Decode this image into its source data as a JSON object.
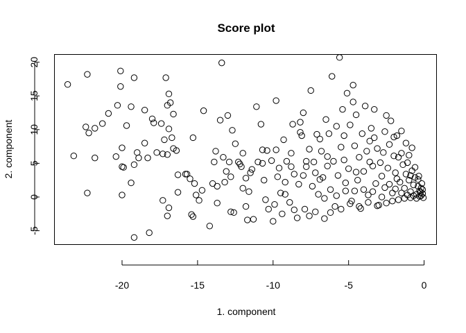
{
  "chart_data": {
    "type": "scatter",
    "title": "Score plot",
    "xlabel": "1. component",
    "ylabel": "2. component",
    "xlim": [
      -24.5,
      0.8
    ],
    "ylim": [
      -7.0,
      21.2
    ],
    "xticks": [
      -20,
      -15,
      -10,
      -5,
      0
    ],
    "yticks": [
      -5,
      0,
      5,
      10,
      15,
      20
    ],
    "grid": false,
    "legend": "none",
    "marker": "open-circle",
    "points": [
      [
        -23.6,
        16.7
      ],
      [
        -23.2,
        6.1
      ],
      [
        -22.4,
        10.4
      ],
      [
        -22.3,
        18.2
      ],
      [
        -22.2,
        9.5
      ],
      [
        -22.3,
        0.6
      ],
      [
        -21.8,
        10.2
      ],
      [
        -21.8,
        5.8
      ],
      [
        -21.3,
        10.9
      ],
      [
        -20.9,
        12.4
      ],
      [
        -20.4,
        6.0
      ],
      [
        -20.3,
        13.6
      ],
      [
        -20.1,
        18.7
      ],
      [
        -20.1,
        16.4
      ],
      [
        -20.0,
        7.3
      ],
      [
        -20.0,
        4.5
      ],
      [
        -19.9,
        4.4
      ],
      [
        -20.0,
        0.3
      ],
      [
        -19.7,
        10.6
      ],
      [
        -19.4,
        2.1
      ],
      [
        -19.4,
        13.4
      ],
      [
        -19.2,
        17.7
      ],
      [
        -19.2,
        4.8
      ],
      [
        -19.2,
        -6.0
      ],
      [
        -19.0,
        6.6
      ],
      [
        -18.9,
        5.8
      ],
      [
        -18.5,
        8.0
      ],
      [
        -18.5,
        12.9
      ],
      [
        -18.3,
        5.8
      ],
      [
        -18.2,
        -5.3
      ],
      [
        -18.0,
        11.6
      ],
      [
        -17.9,
        11.0
      ],
      [
        -17.7,
        6.6
      ],
      [
        -17.3,
        6.4
      ],
      [
        -17.4,
        10.9
      ],
      [
        -17.2,
        8.5
      ],
      [
        -17.1,
        17.7
      ],
      [
        -17.0,
        6.3
      ],
      [
        -17.0,
        13.6
      ],
      [
        -16.9,
        15.3
      ],
      [
        -16.9,
        10.1
      ],
      [
        -16.8,
        14.0
      ],
      [
        -16.7,
        8.8
      ],
      [
        -16.6,
        7.2
      ],
      [
        -16.6,
        12.3
      ],
      [
        -16.4,
        6.9
      ],
      [
        -16.3,
        3.3
      ],
      [
        -17.3,
        -0.5
      ],
      [
        -16.9,
        -1.6
      ],
      [
        -17.0,
        -2.8
      ],
      [
        -16.3,
        0.7
      ],
      [
        -15.8,
        3.4
      ],
      [
        -15.7,
        3.4
      ],
      [
        -15.5,
        2.7
      ],
      [
        -15.3,
        8.8
      ],
      [
        -15.2,
        2.0
      ],
      [
        -15.4,
        -2.6
      ],
      [
        -15.3,
        -2.9
      ],
      [
        -15.1,
        0.3
      ],
      [
        -14.9,
        -0.5
      ],
      [
        -14.7,
        1.0
      ],
      [
        -14.6,
        12.8
      ],
      [
        -14.2,
        -4.3
      ],
      [
        -14.0,
        2.0
      ],
      [
        -13.9,
        5.2
      ],
      [
        -13.8,
        6.8
      ],
      [
        -13.7,
        1.6
      ],
      [
        -13.7,
        -0.9
      ],
      [
        -13.5,
        11.4
      ],
      [
        -13.4,
        19.9
      ],
      [
        -13.3,
        5.9
      ],
      [
        -13.2,
        2.2
      ],
      [
        -13.1,
        3.8
      ],
      [
        -13.0,
        12.1
      ],
      [
        -12.9,
        5.2
      ],
      [
        -12.8,
        3.0
      ],
      [
        -12.7,
        9.9
      ],
      [
        -12.6,
        -2.3
      ],
      [
        -12.5,
        7.9
      ],
      [
        -12.3,
        5.2
      ],
      [
        -12.2,
        4.9
      ],
      [
        -12.1,
        4.5
      ],
      [
        -12.0,
        1.3
      ],
      [
        -11.8,
        -1.4
      ],
      [
        -11.7,
        -3.4
      ],
      [
        -11.6,
        0.8
      ],
      [
        -11.5,
        3.6
      ],
      [
        -11.3,
        -3.3
      ],
      [
        -11.1,
        13.4
      ],
      [
        -11.0,
        5.2
      ],
      [
        -10.8,
        10.8
      ],
      [
        -10.7,
        7.0
      ],
      [
        -10.6,
        2.5
      ],
      [
        -10.5,
        -0.4
      ],
      [
        -10.4,
        6.9
      ],
      [
        -10.3,
        -1.8
      ],
      [
        -10.1,
        5.4
      ],
      [
        -10.0,
        -3.6
      ],
      [
        -9.8,
        14.3
      ],
      [
        -9.8,
        7.0
      ],
      [
        -9.6,
        4.3
      ],
      [
        -9.5,
        0.6
      ],
      [
        -9.4,
        -2.5
      ],
      [
        -9.3,
        8.5
      ],
      [
        -9.2,
        2.2
      ],
      [
        -9.1,
        5.3
      ],
      [
        -8.9,
        -0.8
      ],
      [
        -8.8,
        6.5
      ],
      [
        -8.7,
        10.8
      ],
      [
        -8.6,
        3.4
      ],
      [
        -8.4,
        -3.1
      ],
      [
        -8.3,
        1.9
      ],
      [
        -8.2,
        11.1
      ],
      [
        -8.2,
        9.6
      ],
      [
        -8.1,
        9.1
      ],
      [
        -8.0,
        12.5
      ],
      [
        -7.9,
        -1.8
      ],
      [
        -7.8,
        4.5
      ],
      [
        -7.6,
        7.1
      ],
      [
        -7.5,
        15.8
      ],
      [
        -7.4,
        1.6
      ],
      [
        -7.3,
        5.2
      ],
      [
        -7.2,
        -2.2
      ],
      [
        -7.1,
        9.3
      ],
      [
        -7.0,
        0.4
      ],
      [
        -6.9,
        8.6
      ],
      [
        -6.8,
        6.8
      ],
      [
        -6.7,
        2.9
      ],
      [
        -6.6,
        -3.2
      ],
      [
        -6.5,
        11.5
      ],
      [
        -6.4,
        4.6
      ],
      [
        -6.3,
        9.4
      ],
      [
        -6.2,
        1.1
      ],
      [
        -6.1,
        17.9
      ],
      [
        -6.0,
        5.3
      ],
      [
        -5.9,
        -1.4
      ],
      [
        -5.8,
        10.5
      ],
      [
        -5.7,
        3.2
      ],
      [
        -5.6,
        20.7
      ],
      [
        -5.5,
        7.4
      ],
      [
        -5.4,
        13.0
      ],
      [
        -5.3,
        9.1
      ],
      [
        -5.2,
        0.9
      ],
      [
        -5.1,
        15.4
      ],
      [
        -5.0,
        4.2
      ],
      [
        -4.9,
        10.7
      ],
      [
        -4.8,
        -0.6
      ],
      [
        -4.7,
        16.6
      ],
      [
        -4.7,
        14.1
      ],
      [
        -4.6,
        7.6
      ],
      [
        -4.5,
        12.2
      ],
      [
        -4.4,
        2.5
      ],
      [
        -4.3,
        5.9
      ],
      [
        -4.2,
        -1.7
      ],
      [
        -4.1,
        9.4
      ],
      [
        -4.0,
        3.8
      ],
      [
        -3.9,
        13.5
      ],
      [
        -3.8,
        6.8
      ],
      [
        -3.7,
        0.3
      ],
      [
        -3.6,
        8.3
      ],
      [
        -3.5,
        10.2
      ],
      [
        -3.4,
        4.6
      ],
      [
        -3.3,
        13.0
      ],
      [
        -3.2,
        2.0
      ],
      [
        -3.1,
        7.2
      ],
      [
        -3.0,
        -1.2
      ],
      [
        -2.9,
        5.1
      ],
      [
        -2.8,
        3.1
      ],
      [
        -2.7,
        6.6
      ],
      [
        -2.6,
        1.4
      ],
      [
        -2.5,
        12.1
      ],
      [
        -2.4,
        4.3
      ],
      [
        -2.3,
        7.8
      ],
      [
        -2.2,
        11.3
      ],
      [
        -2.1,
        0.6
      ],
      [
        -2.0,
        8.9
      ],
      [
        -1.9,
        3.6
      ],
      [
        -1.8,
        9.1
      ],
      [
        -1.7,
        5.9
      ],
      [
        -1.6,
        2.2
      ],
      [
        -1.5,
        6.5
      ],
      [
        -1.4,
        4.8
      ],
      [
        -1.3,
        1.3
      ],
      [
        -1.2,
        3.4
      ],
      [
        -1.1,
        5.1
      ],
      [
        -1.0,
        2.5
      ],
      [
        -0.9,
        0.8
      ],
      [
        -0.8,
        3.9
      ],
      [
        -0.7,
        1.8
      ],
      [
        -0.6,
        2.9
      ],
      [
        -0.5,
        0.4
      ],
      [
        -0.4,
        1.6
      ],
      [
        -0.3,
        0.9
      ],
      [
        -0.2,
        0.2
      ],
      [
        -0.1,
        0.5
      ],
      [
        -0.05,
        -0.1
      ],
      [
        -12.8,
        -2.2
      ],
      [
        -11.8,
        2.8
      ],
      [
        -9.9,
        -1.1
      ],
      [
        -9.2,
        0.4
      ],
      [
        -8.6,
        -1.9
      ],
      [
        -7.6,
        -2.8
      ],
      [
        -7.2,
        3.6
      ],
      [
        -6.6,
        -0.2
      ],
      [
        -6.2,
        -2.3
      ],
      [
        -5.8,
        0.2
      ],
      [
        -5.5,
        -1.8
      ],
      [
        -5.2,
        2.1
      ],
      [
        -4.9,
        -1.0
      ],
      [
        -4.6,
        0.9
      ],
      [
        -4.3,
        -1.4
      ],
      [
        -4.0,
        1.1
      ],
      [
        -3.7,
        -0.8
      ],
      [
        -3.4,
        0.8
      ],
      [
        -3.1,
        -1.3
      ],
      [
        -2.8,
        0.0
      ],
      [
        -2.5,
        -0.9
      ],
      [
        -2.3,
        1.9
      ],
      [
        -2.1,
        -0.6
      ],
      [
        -1.9,
        1.2
      ],
      [
        -1.7,
        -0.4
      ],
      [
        -1.5,
        0.6
      ],
      [
        -1.3,
        -0.2
      ],
      [
        -1.1,
        0.3
      ],
      [
        -0.9,
        -0.1
      ],
      [
        -0.7,
        0.2
      ],
      [
        -0.5,
        -0.2
      ],
      [
        -0.3,
        0.1
      ],
      [
        -1.0,
        6.2
      ],
      [
        -1.5,
        9.8
      ],
      [
        -2.6,
        9.7
      ],
      [
        -3.3,
        8.8
      ],
      [
        -0.6,
        4.4
      ],
      [
        -0.8,
        7.3
      ],
      [
        -1.2,
        8.0
      ],
      [
        -2.0,
        6.1
      ],
      [
        -1.8,
        2.7
      ],
      [
        -0.9,
        3.2
      ],
      [
        -0.4,
        2.6
      ],
      [
        -0.2,
        1.3
      ],
      [
        -0.15,
        2.0
      ],
      [
        -0.35,
        3.1
      ],
      [
        -0.25,
        0.7
      ],
      [
        -0.1,
        1.1
      ],
      [
        -6.4,
        6.0
      ],
      [
        -7.8,
        5.3
      ],
      [
        -8.8,
        4.5
      ],
      [
        -10.7,
        5.0
      ],
      [
        -11.4,
        4.1
      ],
      [
        -12.0,
        6.5
      ],
      [
        -9.7,
        3.0
      ],
      [
        -8.0,
        3.2
      ],
      [
        -6.9,
        2.6
      ],
      [
        -5.3,
        5.5
      ],
      [
        -4.5,
        3.7
      ],
      [
        -3.6,
        5.2
      ]
    ]
  }
}
